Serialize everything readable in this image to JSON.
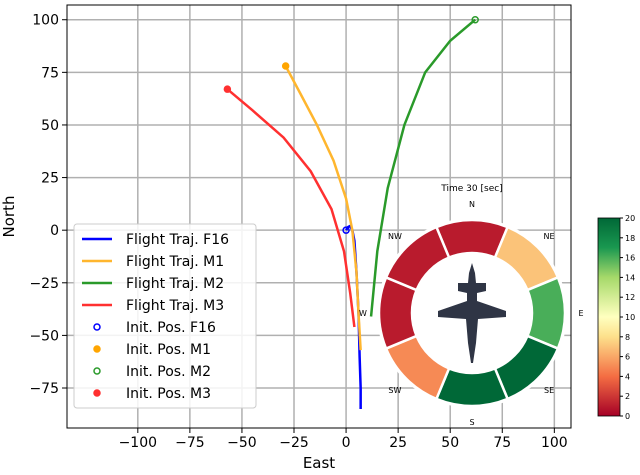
{
  "chart_data": {
    "type": "line",
    "xlabel": "East",
    "ylabel": "North",
    "xlim": [
      -134,
      108
    ],
    "ylim": [
      -94,
      107
    ],
    "xticks": [
      -100,
      -75,
      -50,
      -25,
      0,
      25,
      50,
      75,
      100
    ],
    "yticks": [
      -75,
      -50,
      -25,
      0,
      25,
      50,
      75,
      100
    ],
    "grid": true,
    "legend_position": "bottom-left",
    "series": [
      {
        "name": "Flight Traj. F16",
        "color": "#0000ff",
        "x": [
          0,
          1,
          2,
          3,
          4,
          5,
          6,
          6.5,
          7,
          7
        ],
        "y": [
          0,
          1.5,
          2,
          0,
          -5,
          -20,
          -40,
          -60,
          -75,
          -85
        ]
      },
      {
        "name": "Flight Traj. M1",
        "color": "#ffb62e",
        "x": [
          -29,
          -22,
          -14,
          -6,
          0,
          3,
          5,
          6,
          7
        ],
        "y": [
          78,
          65,
          50,
          33,
          15,
          0,
          -20,
          -40,
          -57
        ]
      },
      {
        "name": "Flight Traj. M2",
        "color": "#2a9a2a",
        "x": [
          62,
          50,
          38,
          28,
          20,
          15,
          12
        ],
        "y": [
          100,
          90,
          75,
          50,
          20,
          -10,
          -41
        ]
      },
      {
        "name": "Flight Traj. M3",
        "color": "#ff3030",
        "x": [
          -57,
          -45,
          -30,
          -17,
          -7,
          -1,
          2,
          4
        ],
        "y": [
          67,
          57,
          44,
          28,
          10,
          -10,
          -30,
          -46
        ]
      }
    ],
    "markers": [
      {
        "name": "Init. Pos. F16",
        "color": "#0000ff",
        "x": 0,
        "y": 0,
        "hollow": true
      },
      {
        "name": "Init. Pos. M1",
        "color": "#ffa500",
        "x": -29,
        "y": 78,
        "hollow": false
      },
      {
        "name": "Init. Pos. M2",
        "color": "#2a9a2a",
        "x": 62,
        "y": 100,
        "hollow": true
      },
      {
        "name": "Init. Pos. M3",
        "color": "#ff3030",
        "x": -57,
        "y": 67,
        "hollow": false
      }
    ],
    "inset": {
      "title": "Time 30 [sec]",
      "directions": [
        "N",
        "NE",
        "E",
        "SE",
        "S",
        "SW",
        "W",
        "NW"
      ],
      "values": [
        1,
        7,
        16,
        20,
        20,
        5,
        1,
        1
      ],
      "colorbar": {
        "min": 0,
        "max": 20,
        "ticks": [
          0,
          2,
          4,
          6,
          8,
          10,
          12,
          14,
          16,
          18,
          20
        ]
      }
    }
  }
}
